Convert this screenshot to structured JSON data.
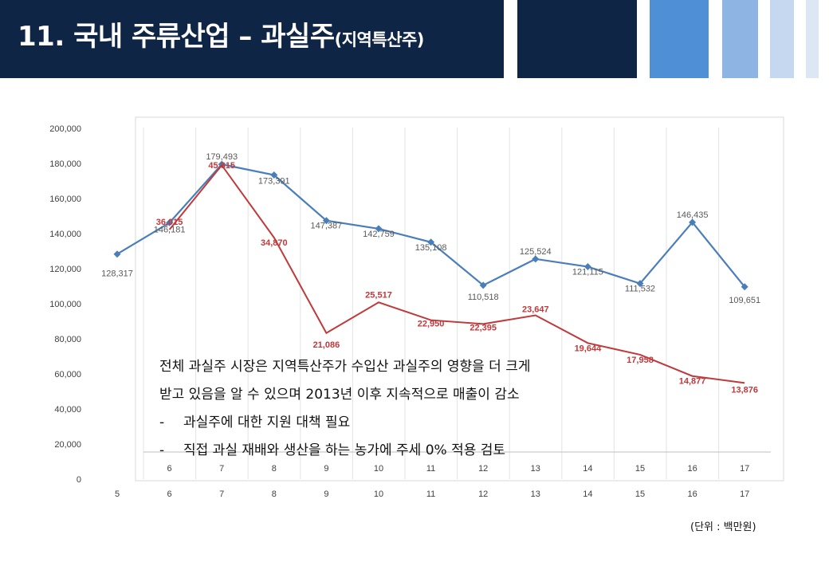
{
  "header": {
    "title": "11. 국내 주류산업 – 과실주",
    "title_sub": "(지역특산주)"
  },
  "colors": {
    "header_bg": "#0f2545",
    "series_total": "#4a7ebb",
    "series_regional": "#c0393b"
  },
  "chart_data": {
    "type": "line",
    "x": [
      "5",
      "6",
      "7",
      "8",
      "9",
      "10",
      "11",
      "12",
      "13",
      "14",
      "15",
      "16",
      "17"
    ],
    "inner_x_labels": [
      "6",
      "7",
      "8",
      "9",
      "10",
      "11",
      "12",
      "13",
      "14",
      "15",
      "16",
      "17"
    ],
    "ylim": [
      0,
      200000
    ],
    "yticks": [
      "0",
      "20,000",
      "40,000",
      "60,000",
      "80,000",
      "100,000",
      "120,000",
      "140,000",
      "160,000",
      "180,000",
      "200,000"
    ],
    "series": [
      {
        "values": [
          128317,
          146181,
          179493,
          173391,
          147387,
          142759,
          135108,
          110518,
          125524,
          121115,
          111532,
          146435,
          109651
        ],
        "labels": [
          "128,317",
          "146,181",
          "179,493",
          "173,391",
          "147,387",
          "142,759",
          "135,108",
          "110,518",
          "125,524",
          "121,115",
          "111,532",
          "146,435",
          "109,651"
        ]
      },
      {
        "x": [
          "6",
          "7",
          "8",
          "9",
          "10",
          "11",
          "12",
          "13",
          "14",
          "15",
          "16",
          "17"
        ],
        "values": [
          36015,
          45315,
          34870,
          21086,
          25517,
          22950,
          22395,
          23647,
          19644,
          17958,
          14877,
          13876
        ],
        "labels": [
          "36,015",
          "45,315",
          "34,870",
          "21,086",
          "25,517",
          "22,950",
          "22,395",
          "23,647",
          "19,644",
          "17,958",
          "14,877",
          "13,876"
        ]
      }
    ],
    "grid": true
  },
  "bullets": [
    "전체 과실주 시장은 지역특산주가 수입산 과실주의 영향을 더 크게",
    "받고 있음을 알 수 있으며 2013년 이후 지속적으로 매출이 감소",
    "과실주에 대한 지원 대책 필요",
    "직접 과실 재배와 생산을 하는 농가에 주세 0% 적용 검토"
  ],
  "bullet_dash": "-",
  "unit_note": "(단위 : 백만원)"
}
